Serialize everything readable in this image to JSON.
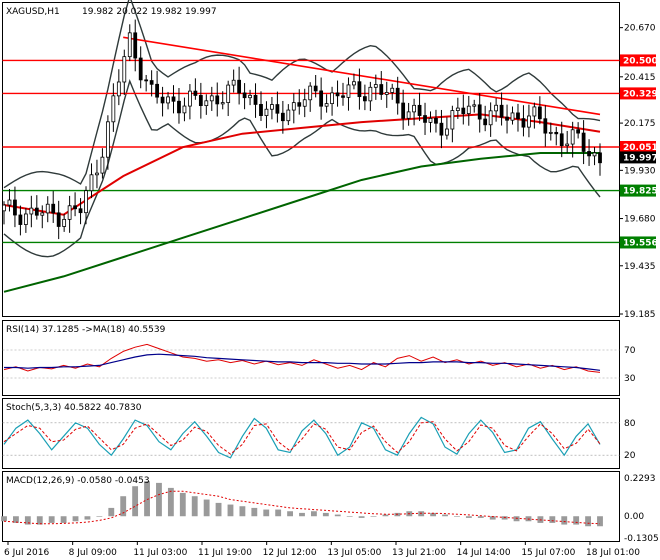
{
  "chart_data": {
    "type": "candlestick",
    "symbol_label": "XAGUSD,H1",
    "ohlc_label": "19.982 20.022 19.982 19.997",
    "price_axis_ticks": [
      "20.670",
      "20.415",
      "20.175",
      "19.930",
      "19.680",
      "19.435",
      "19.185"
    ],
    "time_labels": [
      "6 Jul 2016",
      "8 Jul 09:00",
      "11 Jul 03:00",
      "11 Jul 19:00",
      "12 Jul 12:00",
      "13 Jul 05:00",
      "13 Jul 21:00",
      "14 Jul 14:00",
      "15 Jul 07:00",
      "18 Jul 01:00"
    ],
    "current_price": "19.997",
    "resistance_levels": [
      {
        "label": "20.500",
        "value": 20.5,
        "color": "#ff0000"
      },
      {
        "label": "20.329",
        "value": 20.329,
        "color": "#ff0000"
      },
      {
        "label": "20.051",
        "value": 20.051,
        "color": "#ff0000"
      }
    ],
    "support_levels": [
      {
        "label": "19.825",
        "value": 19.825,
        "color": "#008000"
      },
      {
        "label": "19.556",
        "value": 19.556,
        "color": "#008000"
      }
    ],
    "trendline": {
      "from": [
        0.2,
        20.62
      ],
      "to": [
        1.0,
        20.22
      ],
      "color": "#ff0000"
    },
    "ylim": [
      19.185,
      20.72
    ],
    "sma_red": [
      [
        0.0,
        19.75
      ],
      [
        0.1,
        19.7
      ],
      [
        0.2,
        19.9
      ],
      [
        0.3,
        20.05
      ],
      [
        0.4,
        20.12
      ],
      [
        0.5,
        20.15
      ],
      [
        0.6,
        20.18
      ],
      [
        0.7,
        20.2
      ],
      [
        0.8,
        20.22
      ],
      [
        0.9,
        20.18
      ],
      [
        1.0,
        20.13
      ]
    ],
    "sma_green": [
      [
        0.0,
        19.3
      ],
      [
        0.1,
        19.38
      ],
      [
        0.2,
        19.48
      ],
      [
        0.3,
        19.58
      ],
      [
        0.4,
        19.68
      ],
      [
        0.5,
        19.78
      ],
      [
        0.6,
        19.88
      ],
      [
        0.7,
        19.95
      ],
      [
        0.8,
        19.99
      ],
      [
        0.9,
        20.02
      ],
      [
        1.0,
        20.02
      ]
    ],
    "rsi": {
      "label": "RSI(14) 37.1285  ->MA(18) 40.5539",
      "levels": [
        "70",
        "30"
      ],
      "ylim": [
        10,
        90
      ],
      "values": [
        42,
        46,
        40,
        45,
        43,
        48,
        44,
        50,
        46,
        58,
        68,
        74,
        78,
        72,
        66,
        60,
        58,
        54,
        56,
        52,
        55,
        50,
        54,
        49,
        52,
        48,
        56,
        50,
        44,
        48,
        42,
        52,
        46,
        58,
        62,
        54,
        60,
        52,
        56,
        50,
        54,
        48,
        52,
        46,
        50,
        44,
        48,
        42,
        46,
        40,
        38
      ],
      "ma": [
        45,
        45,
        44,
        45,
        45,
        46,
        46,
        47,
        48,
        52,
        56,
        60,
        63,
        64,
        63,
        62,
        61,
        59,
        58,
        57,
        56,
        55,
        54,
        53,
        53,
        52,
        52,
        52,
        51,
        51,
        50,
        50,
        50,
        51,
        52,
        52,
        53,
        53,
        53,
        52,
        52,
        51,
        51,
        50,
        49,
        48,
        47,
        46,
        45,
        43,
        41
      ]
    },
    "stoch": {
      "label": "Stoch(5,3,3) 40.5822 40.7830",
      "levels": [
        "80",
        "20"
      ],
      "ylim": [
        0,
        100
      ],
      "main": [
        40,
        70,
        85,
        60,
        30,
        55,
        80,
        70,
        40,
        20,
        50,
        85,
        75,
        45,
        30,
        60,
        82,
        55,
        25,
        15,
        55,
        88,
        70,
        30,
        25,
        65,
        85,
        60,
        20,
        35,
        80,
        70,
        30,
        20,
        60,
        90,
        78,
        35,
        22,
        60,
        85,
        62,
        25,
        30,
        70,
        82,
        50,
        20,
        55,
        78,
        40
      ],
      "signal": [
        45,
        60,
        75,
        70,
        45,
        48,
        68,
        74,
        52,
        30,
        40,
        70,
        78,
        58,
        38,
        48,
        72,
        64,
        38,
        22,
        40,
        75,
        78,
        45,
        28,
        50,
        78,
        68,
        35,
        30,
        62,
        74,
        45,
        25,
        45,
        80,
        82,
        50,
        28,
        45,
        76,
        70,
        38,
        28,
        55,
        78,
        60,
        32,
        42,
        68,
        41
      ]
    },
    "macd": {
      "label": "MACD(12,26,9) -0.0580 -0.0453",
      "ticks": [
        "0.2293",
        "0.00",
        "-0.1305"
      ],
      "ylim": [
        -0.1305,
        0.2293
      ],
      "histogram": [
        -0.03,
        -0.04,
        -0.05,
        -0.05,
        -0.04,
        -0.04,
        -0.03,
        -0.02,
        0.0,
        0.05,
        0.12,
        0.18,
        0.21,
        0.2,
        0.17,
        0.14,
        0.12,
        0.1,
        0.08,
        0.07,
        0.06,
        0.05,
        0.04,
        0.04,
        0.03,
        0.02,
        0.03,
        0.02,
        0.01,
        0.0,
        -0.01,
        0.0,
        0.01,
        0.02,
        0.03,
        0.03,
        0.02,
        0.01,
        0.0,
        -0.01,
        -0.01,
        -0.02,
        -0.02,
        -0.03,
        -0.03,
        -0.04,
        -0.04,
        -0.05,
        -0.05,
        -0.06,
        -0.06
      ],
      "signal": [
        -0.03,
        -0.035,
        -0.04,
        -0.045,
        -0.045,
        -0.043,
        -0.04,
        -0.035,
        -0.025,
        -0.01,
        0.02,
        0.06,
        0.1,
        0.13,
        0.15,
        0.15,
        0.14,
        0.13,
        0.12,
        0.1,
        0.09,
        0.08,
        0.07,
        0.06,
        0.05,
        0.045,
        0.04,
        0.035,
        0.03,
        0.025,
        0.02,
        0.015,
        0.012,
        0.012,
        0.015,
        0.018,
        0.018,
        0.016,
        0.012,
        0.008,
        0.003,
        -0.002,
        -0.007,
        -0.012,
        -0.017,
        -0.022,
        -0.027,
        -0.032,
        -0.037,
        -0.042,
        -0.045
      ]
    }
  }
}
